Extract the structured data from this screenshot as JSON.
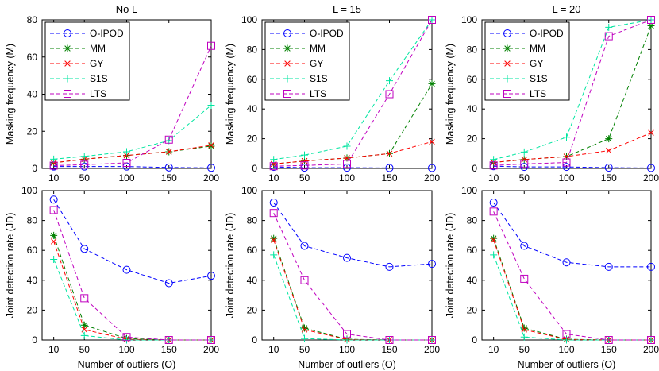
{
  "chart_data": [
    {
      "type": "line",
      "title": "No L",
      "xlabel": "",
      "ylabel": "Masking frequency (M)",
      "x": [
        10,
        50,
        100,
        150,
        200
      ],
      "xticks": [
        10,
        50,
        100,
        150,
        200
      ],
      "ylim": [
        0,
        80
      ],
      "yticks": [
        0,
        20,
        40,
        60,
        80
      ],
      "legend": "top-left",
      "series": [
        {
          "name": "Θ-IPOD",
          "color": "#0000ff",
          "marker": "circle",
          "values": [
            1,
            1,
            1,
            0.5,
            0.3
          ]
        },
        {
          "name": "MM",
          "color": "#008000",
          "marker": "star",
          "values": [
            3,
            5,
            7,
            9,
            12
          ]
        },
        {
          "name": "GY",
          "color": "#ff0000",
          "marker": "x",
          "values": [
            3,
            5,
            7,
            9,
            12.5
          ]
        },
        {
          "name": "S1S",
          "color": "#00e5a0",
          "marker": "plus",
          "values": [
            5,
            6.5,
            9,
            15,
            34
          ]
        },
        {
          "name": "LTS",
          "color": "#bf00bf",
          "marker": "square",
          "values": [
            1.5,
            2,
            3,
            15.5,
            66
          ]
        }
      ]
    },
    {
      "type": "line",
      "title": "L = 15",
      "xlabel": "",
      "ylabel": "Masking frequency (M)",
      "x": [
        10,
        50,
        100,
        150,
        200
      ],
      "xticks": [
        10,
        50,
        100,
        150,
        200
      ],
      "ylim": [
        0,
        100
      ],
      "yticks": [
        0,
        20,
        40,
        60,
        80,
        100
      ],
      "legend": "top-left",
      "series": [
        {
          "name": "Θ-IPOD",
          "color": "#0000ff",
          "marker": "circle",
          "values": [
            1,
            0.5,
            0.5,
            0.3,
            0.3
          ]
        },
        {
          "name": "MM",
          "color": "#008000",
          "marker": "star",
          "values": [
            3,
            5,
            7,
            10,
            57
          ]
        },
        {
          "name": "GY",
          "color": "#ff0000",
          "marker": "x",
          "values": [
            3,
            5,
            7,
            10,
            18
          ]
        },
        {
          "name": "S1S",
          "color": "#00e5a0",
          "marker": "plus",
          "values": [
            6,
            9,
            15,
            59,
            100
          ]
        },
        {
          "name": "LTS",
          "color": "#bf00bf",
          "marker": "square",
          "values": [
            1.5,
            2,
            3,
            50,
            100
          ]
        }
      ]
    },
    {
      "type": "line",
      "title": "L = 20",
      "xlabel": "",
      "ylabel": "Masking frequency (M)",
      "x": [
        10,
        50,
        100,
        150,
        200
      ],
      "xticks": [
        10,
        50,
        100,
        150,
        200
      ],
      "ylim": [
        0,
        100
      ],
      "yticks": [
        0,
        20,
        40,
        60,
        80,
        100
      ],
      "legend": "top-left",
      "series": [
        {
          "name": "Θ-IPOD",
          "color": "#0000ff",
          "marker": "circle",
          "values": [
            1.5,
            1,
            1,
            0.5,
            0.3
          ]
        },
        {
          "name": "MM",
          "color": "#008000",
          "marker": "star",
          "values": [
            4,
            6,
            8,
            20,
            96
          ]
        },
        {
          "name": "GY",
          "color": "#ff0000",
          "marker": "x",
          "values": [
            4,
            6,
            8,
            12,
            24
          ]
        },
        {
          "name": "S1S",
          "color": "#00e5a0",
          "marker": "plus",
          "values": [
            6,
            11,
            21,
            95,
            100
          ]
        },
        {
          "name": "LTS",
          "color": "#bf00bf",
          "marker": "square",
          "values": [
            2,
            3,
            4,
            89,
            100
          ]
        }
      ]
    },
    {
      "type": "line",
      "title": "",
      "xlabel": "Number of outliers (O)",
      "ylabel": "Joint detection rate (JD)",
      "x": [
        10,
        50,
        100,
        150,
        200
      ],
      "xticks": [
        10,
        50,
        100,
        150,
        200
      ],
      "ylim": [
        0,
        100
      ],
      "yticks": [
        0,
        20,
        40,
        60,
        80,
        100
      ],
      "legend": "none",
      "series": [
        {
          "name": "Θ-IPOD",
          "color": "#0000ff",
          "marker": "circle",
          "values": [
            94,
            61,
            47,
            38,
            43
          ]
        },
        {
          "name": "MM",
          "color": "#008000",
          "marker": "star",
          "values": [
            70,
            10,
            1,
            0,
            0
          ]
        },
        {
          "name": "GY",
          "color": "#ff0000",
          "marker": "x",
          "values": [
            66,
            7,
            0.5,
            0,
            0
          ]
        },
        {
          "name": "S1S",
          "color": "#00e5a0",
          "marker": "plus",
          "values": [
            54,
            3,
            0,
            0,
            0
          ]
        },
        {
          "name": "LTS",
          "color": "#bf00bf",
          "marker": "square",
          "values": [
            87,
            28,
            2,
            0,
            0
          ]
        }
      ]
    },
    {
      "type": "line",
      "title": "",
      "xlabel": "Number of outliers (O)",
      "ylabel": "Joint detection rate (JD)",
      "x": [
        10,
        50,
        100,
        150,
        200
      ],
      "xticks": [
        10,
        50,
        100,
        150,
        200
      ],
      "ylim": [
        0,
        100
      ],
      "yticks": [
        0,
        20,
        40,
        60,
        80,
        100
      ],
      "legend": "none",
      "series": [
        {
          "name": "Θ-IPOD",
          "color": "#0000ff",
          "marker": "circle",
          "values": [
            92,
            63,
            55,
            49,
            51
          ]
        },
        {
          "name": "MM",
          "color": "#008000",
          "marker": "star",
          "values": [
            68,
            8,
            0.5,
            0,
            0
          ]
        },
        {
          "name": "GY",
          "color": "#ff0000",
          "marker": "x",
          "values": [
            67,
            7,
            0.3,
            0,
            0
          ]
        },
        {
          "name": "S1S",
          "color": "#00e5a0",
          "marker": "plus",
          "values": [
            57,
            1,
            0,
            0,
            0
          ]
        },
        {
          "name": "LTS",
          "color": "#bf00bf",
          "marker": "square",
          "values": [
            85,
            40,
            4,
            0,
            0
          ]
        }
      ]
    },
    {
      "type": "line",
      "title": "",
      "xlabel": "Number of outliers (O)",
      "ylabel": "Joint detection rate (JD)",
      "x": [
        10,
        50,
        100,
        150,
        200
      ],
      "xticks": [
        10,
        50,
        100,
        150,
        200
      ],
      "ylim": [
        0,
        100
      ],
      "yticks": [
        0,
        20,
        40,
        60,
        80,
        100
      ],
      "legend": "none",
      "series": [
        {
          "name": "Θ-IPOD",
          "color": "#0000ff",
          "marker": "circle",
          "values": [
            92,
            63,
            52,
            49,
            49
          ]
        },
        {
          "name": "MM",
          "color": "#008000",
          "marker": "star",
          "values": [
            68,
            8,
            0.5,
            0,
            0
          ]
        },
        {
          "name": "GY",
          "color": "#ff0000",
          "marker": "x",
          "values": [
            67,
            7,
            0.3,
            0,
            0
          ]
        },
        {
          "name": "S1S",
          "color": "#00e5a0",
          "marker": "plus",
          "values": [
            57,
            2,
            0,
            0,
            0
          ]
        },
        {
          "name": "LTS",
          "color": "#bf00bf",
          "marker": "square",
          "values": [
            86,
            41,
            4,
            0,
            0
          ]
        }
      ]
    }
  ]
}
